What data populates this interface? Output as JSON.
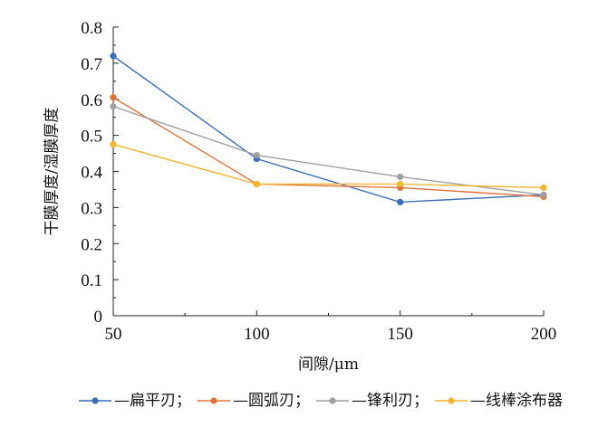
{
  "chart_data": {
    "type": "line",
    "x": [
      50,
      100,
      150,
      200
    ],
    "xlabel": "间隙/μm",
    "ylabel": "干膜厚度/湿膜厚度",
    "xlim": [
      50,
      200
    ],
    "ylim": [
      0,
      0.8
    ],
    "xticks": [
      "50",
      "100",
      "150",
      "200"
    ],
    "yticks": [
      "0",
      "0.1",
      "0.2",
      "0.3",
      "0.4",
      "0.5",
      "0.6",
      "0.7",
      "0.8"
    ],
    "grid": false,
    "legend_position": "bottom",
    "series": [
      {
        "name": "—扁平刃；",
        "color": "#3a6fb5",
        "values": [
          0.72,
          0.435,
          0.315,
          0.335
        ]
      },
      {
        "name": "—圆弧刃；",
        "color": "#e0733a",
        "values": [
          0.605,
          0.365,
          0.355,
          0.33
        ]
      },
      {
        "name": "—锋利刃；",
        "color": "#a0a0a0",
        "values": [
          0.58,
          0.445,
          0.385,
          0.335
        ]
      },
      {
        "name": "—线棒涂布器",
        "color": "#f2b630",
        "values": [
          0.475,
          0.365,
          0.365,
          0.355
        ]
      }
    ]
  }
}
